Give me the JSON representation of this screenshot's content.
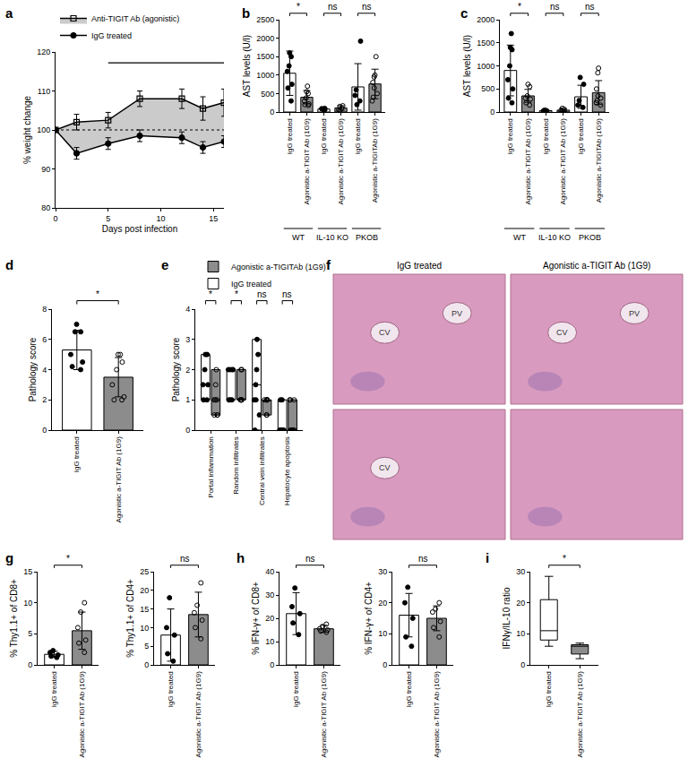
{
  "chart_data": [
    {
      "panel": "a",
      "type": "line",
      "legend": "top-left",
      "x": [
        0,
        2,
        5,
        8,
        12,
        14,
        16
      ],
      "xlabel": "Days post infection",
      "ylabel": "% weight change",
      "xlim": [
        0,
        16
      ],
      "xticks": [
        0,
        5,
        10,
        15
      ],
      "ylim": [
        80,
        120
      ],
      "yticks": [
        80,
        90,
        100,
        110,
        120
      ],
      "baseline": 100,
      "significance_span": [
        5,
        16
      ],
      "series": [
        {
          "name": "IgG treated",
          "color": "#000000",
          "marker": "circle",
          "values": [
            100,
            94,
            96.5,
            98.5,
            98,
            95.5,
            97
          ],
          "errors": [
            0,
            1.5,
            1.5,
            1.5,
            1.5,
            1.5,
            1.5
          ]
        },
        {
          "name": "Anti-TIGIT Ab (agonistic)",
          "color": "#000000",
          "marker": "square-open",
          "values": [
            100,
            102,
            102.5,
            108,
            108,
            105.5,
            107
          ],
          "errors": [
            0,
            2,
            2,
            2,
            2.5,
            3,
            3.5
          ]
        }
      ]
    },
    {
      "panel": "b",
      "type": "bar",
      "ylabel": "AST levels (U/l)",
      "ylim": [
        0,
        2500
      ],
      "yticks": [
        0,
        500,
        1000,
        1500,
        2000,
        2500
      ],
      "categories": [
        "IgG treated",
        "Agonistic a-TIGIT Ab (1G9)",
        "IgG treated",
        "Agonistic a-TIGIT Ab (1G9)",
        "IgG treated",
        "Agonistic a-TIGITAb (1G9)"
      ],
      "groups": [
        {
          "label": "WT",
          "between": [
            0,
            1
          ]
        },
        {
          "label": "IL-10 KO",
          "between": [
            2,
            3
          ]
        },
        {
          "label": "PKOB",
          "between": [
            4,
            5
          ]
        }
      ],
      "significance": [
        {
          "between": [
            0,
            1
          ],
          "label": "*"
        },
        {
          "between": [
            2,
            3
          ],
          "label": "ns"
        },
        {
          "between": [
            4,
            5
          ],
          "label": "ns"
        }
      ],
      "series": [
        {
          "color": "#ffffff",
          "marker": "circle",
          "values": [
            1050,
            null,
            80,
            null,
            680,
            null
          ],
          "errors": [
            600,
            null,
            30,
            null,
            630,
            null
          ],
          "points": [
            [
              1500,
              1600,
              1250,
              1100,
              750,
              650,
              300
            ],
            null,
            [
              100,
              90,
              70,
              60
            ],
            null,
            [
              1920,
              600,
              450,
              300,
              200
            ],
            null
          ]
        },
        {
          "color": "#8c8c8c",
          "marker": "circle-open",
          "values": [
            null,
            400,
            null,
            110,
            null,
            760
          ],
          "errors": [
            null,
            180,
            null,
            60,
            null,
            400
          ],
          "points": [
            null,
            [
              700,
              550,
              500,
              380,
              300,
              220,
              200,
              180
            ],
            null,
            [
              170,
              150,
              100,
              60,
              40
            ],
            null,
            [
              1500,
              1000,
              950,
              800,
              650,
              500,
              400,
              300
            ]
          ]
        }
      ]
    },
    {
      "panel": "c",
      "type": "bar",
      "ylabel": "AST levels (U/l)",
      "ylim": [
        0,
        2000
      ],
      "yticks": [
        0,
        500,
        1000,
        1500,
        2000
      ],
      "categories": [
        "IgG treated",
        "Agonistic a-TIGIT Ab (1G9)",
        "IgG treated",
        "Agonistic a-TIGIT Ab (1G9)",
        "IgG treated",
        "Agonistic a-TIGITAb (1G9)"
      ],
      "groups": [
        {
          "label": "WT",
          "between": [
            0,
            1
          ]
        },
        {
          "label": "IL-10 KO",
          "between": [
            2,
            3
          ]
        },
        {
          "label": "PKOB",
          "between": [
            4,
            5
          ]
        }
      ],
      "significance": [
        {
          "between": [
            0,
            1
          ],
          "label": "*"
        },
        {
          "between": [
            2,
            3
          ],
          "label": "ns"
        },
        {
          "between": [
            4,
            5
          ],
          "label": "ns"
        }
      ],
      "series": [
        {
          "color": "#ffffff",
          "marker": "circle",
          "values": [
            900,
            null,
            30,
            null,
            330,
            null
          ],
          "errors": [
            550,
            null,
            15,
            null,
            250,
            null
          ],
          "points": [
            [
              1700,
              1400,
              1350,
              1000,
              700,
              500,
              300,
              200
            ],
            null,
            [
              40,
              30,
              25,
              20
            ],
            null,
            [
              750,
              600,
              250,
              150,
              100
            ],
            null
          ]
        },
        {
          "color": "#8c8c8c",
          "marker": "circle-open",
          "values": [
            null,
            350,
            null,
            40,
            null,
            420
          ],
          "errors": [
            null,
            140,
            null,
            30,
            null,
            260
          ],
          "points": [
            null,
            [
              600,
              550,
              350,
              300,
              280,
              200,
              150
            ],
            null,
            [
              80,
              60,
              40,
              20,
              10
            ],
            null,
            [
              950,
              850,
              500,
              350,
              300,
              250,
              200,
              150
            ]
          ]
        }
      ]
    },
    {
      "panel": "d",
      "type": "bar",
      "ylabel": "Pathology score",
      "ylim": [
        0,
        8
      ],
      "yticks": [
        0,
        2,
        4,
        6,
        8
      ],
      "categories": [
        "IgG treated",
        "Agonistic a-TIGIT Ab (1G9)"
      ],
      "significance": [
        {
          "between": [
            0,
            1
          ],
          "label": "*"
        }
      ],
      "series": [
        {
          "color": "#ffffff",
          "marker": "circle",
          "values": [
            5.3,
            null
          ],
          "errors": [
            1.3,
            null
          ],
          "points": [
            [
              7,
              6.5,
              6.5,
              5,
              4.5,
              4.2,
              4
            ],
            null
          ]
        },
        {
          "color": "#8c8c8c",
          "marker": "circle-open",
          "values": [
            null,
            3.5
          ],
          "errors": [
            null,
            1.3
          ],
          "points": [
            null,
            [
              5,
              5,
              4.5,
              4,
              3,
              2.2,
              2,
              2
            ]
          ]
        }
      ]
    },
    {
      "panel": "e",
      "type": "floating_bar",
      "legend": "top",
      "ylabel": "Pathology score",
      "ylim": [
        0,
        4
      ],
      "yticks": [
        0,
        1,
        2,
        3,
        4
      ],
      "categories": [
        "Portal inflammation",
        "Random infiltrates",
        "Central vein infiltrates",
        "Hepatocyte apoptosis"
      ],
      "significance": [
        "*",
        "*",
        "ns",
        "ns"
      ],
      "series": [
        {
          "name": "IgG treated",
          "color": "#ffffff",
          "marker": "circle",
          "ranges": [
            [
              1,
              2.5
            ],
            [
              1,
              2
            ],
            [
              0,
              3
            ],
            [
              0,
              1
            ]
          ],
          "medians": [
            1.5,
            2,
            1.5,
            0
          ],
          "points": [
            [
              2.5,
              2.5,
              2,
              1.5,
              1.5,
              1,
              1
            ],
            [
              2,
              2,
              2,
              2,
              1,
              1,
              1
            ],
            [
              3,
              2.5,
              2,
              1.5,
              1,
              1,
              0.5,
              0
            ],
            [
              1,
              1,
              0,
              0,
              0,
              0,
              0
            ]
          ]
        },
        {
          "name": "Agonistic a-TIGITAb (1G9)",
          "color": "#8c8c8c",
          "marker": "circle-open",
          "ranges": [
            [
              0.5,
              2
            ],
            [
              1,
              2
            ],
            [
              0.5,
              1
            ],
            [
              0,
              1
            ]
          ],
          "medians": [
            1,
            1,
            1,
            0
          ],
          "points": [
            [
              2,
              1.5,
              1,
              1,
              1,
              0.5,
              0.5,
              0.5
            ],
            [
              2,
              2,
              1,
              1,
              1,
              1,
              1,
              1
            ],
            [
              1,
              1,
              1,
              1,
              1,
              1,
              0.5,
              0.5
            ],
            [
              1,
              1,
              1,
              0,
              0,
              0,
              0,
              0
            ]
          ]
        }
      ]
    },
    {
      "panel": "f",
      "type": "image",
      "columns": [
        "IgG treated",
        "Agonistic a-TIGIT Ab (1G9)"
      ],
      "panes": [
        {
          "row": 0,
          "column": 0,
          "labels": [
            "CV",
            "PV"
          ]
        },
        {
          "row": 0,
          "column": 1,
          "labels": [
            "CV",
            "PV"
          ]
        },
        {
          "row": 1,
          "column": 0,
          "labels": [
            "CV"
          ]
        },
        {
          "row": 1,
          "column": 1,
          "labels": []
        }
      ]
    },
    {
      "panel": "g",
      "type": "bar",
      "ylabel": "% Thy1.1+ of CD8+",
      "ylim": [
        0,
        15
      ],
      "yticks": [
        0,
        5,
        10,
        15
      ],
      "categories": [
        "IgG treated",
        "Agonistic a-TIGIT Ab (1G9)"
      ],
      "significance": [
        {
          "between": [
            0,
            1
          ],
          "label": "*"
        }
      ],
      "series": [
        {
          "color": "#ffffff",
          "marker": "circle",
          "values": [
            1.7,
            null
          ],
          "errors": [
            0.5,
            null
          ],
          "points": [
            [
              2.3,
              2,
              1.6,
              1.4,
              1.2
            ],
            null
          ]
        },
        {
          "color": "#8c8c8c",
          "marker": "circle-open",
          "values": [
            null,
            5.5
          ],
          "errors": [
            null,
            3
          ],
          "points": [
            null,
            [
              10,
              8.5,
              6,
              4,
              3.5,
              2
            ]
          ]
        }
      ]
    },
    {
      "type": "bar",
      "ylabel": "% Thy1.1+ of CD4+",
      "ylim": [
        0,
        25
      ],
      "yticks": [
        0,
        5,
        10,
        15,
        20,
        25
      ],
      "categories": [
        "IgG treated",
        "Agonistic a-TIGIT Ab (1G9)"
      ],
      "significance": [
        {
          "between": [
            0,
            1
          ],
          "label": "ns"
        }
      ],
      "series": [
        {
          "color": "#ffffff",
          "marker": "circle",
          "values": [
            8,
            null
          ],
          "errors": [
            7,
            null
          ],
          "points": [
            [
              18,
              10,
              8,
              3,
              1
            ],
            null
          ]
        },
        {
          "color": "#8c8c8c",
          "marker": "circle-open",
          "values": [
            null,
            13.5
          ],
          "errors": [
            null,
            6
          ],
          "points": [
            null,
            [
              22,
              16,
              14,
              12,
              10,
              7
            ]
          ]
        }
      ]
    },
    {
      "panel": "h",
      "type": "bar",
      "ylabel": "% IFN-γ+ of CD8+",
      "ylim": [
        0,
        40
      ],
      "yticks": [
        0,
        10,
        20,
        30,
        40
      ],
      "categories": [
        "IgG treated",
        "Agonistic a-TIGIT Ab (1G9)"
      ],
      "significance": [
        {
          "between": [
            0,
            1
          ],
          "label": "ns"
        }
      ],
      "series": [
        {
          "color": "#ffffff",
          "marker": "circle",
          "values": [
            22,
            null
          ],
          "errors": [
            9,
            null
          ],
          "points": [
            [
              33,
              25,
              22,
              18,
              13
            ],
            null
          ]
        },
        {
          "color": "#8c8c8c",
          "marker": "circle-open",
          "values": [
            null,
            15.5
          ],
          "errors": [
            null,
            1.5
          ],
          "points": [
            null,
            [
              17.5,
              16.5,
              15.5,
              15,
              14.5,
              14
            ]
          ]
        }
      ]
    },
    {
      "type": "bar",
      "ylabel": "% IFN-γ+ of CD4+",
      "ylim": [
        0,
        30
      ],
      "yticks": [
        0,
        10,
        20,
        30
      ],
      "categories": [
        "IgG treated",
        "Agonistic a-TIGIT Ab (1G9)"
      ],
      "significance": [
        {
          "between": [
            0,
            1
          ],
          "label": "ns"
        }
      ],
      "series": [
        {
          "color": "#ffffff",
          "marker": "circle",
          "values": [
            16,
            null
          ],
          "errors": [
            7,
            null
          ],
          "points": [
            [
              25,
              20,
              15,
              9,
              6
            ],
            null
          ]
        },
        {
          "color": "#8c8c8c",
          "marker": "circle-open",
          "values": [
            null,
            15
          ],
          "errors": [
            null,
            4
          ],
          "points": [
            null,
            [
              20,
              18,
              17,
              14,
              12,
              9
            ]
          ]
        }
      ]
    },
    {
      "panel": "i",
      "type": "box",
      "ylabel": "IFNγ/IL-10 ratio",
      "ylim": [
        0,
        30
      ],
      "yticks": [
        0,
        10,
        20,
        30
      ],
      "categories": [
        "IgG treated",
        "Agonistic a-TIGIT Ab (1G9)"
      ],
      "q1": [
        8,
        3.5
      ],
      "medians": [
        11,
        6
      ],
      "q3": [
        21,
        6.5
      ],
      "mins": [
        6,
        2
      ],
      "maxs": [
        28.5,
        7
      ],
      "colors": [
        "#ffffff",
        "#8c8c8c"
      ],
      "significance": [
        {
          "between": [
            0,
            1
          ],
          "label": "*"
        }
      ]
    }
  ]
}
